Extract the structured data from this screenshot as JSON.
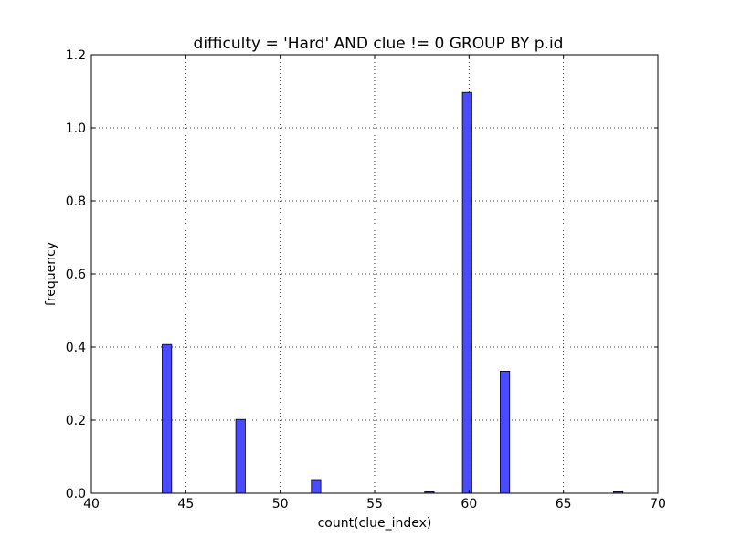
{
  "chart_data": {
    "type": "bar",
    "title": "difficulty = 'Hard' AND clue != 0 GROUP BY p.id",
    "xlabel": "count(clue_index)",
    "ylabel": "frequency",
    "xlim": [
      40,
      70
    ],
    "ylim": [
      0,
      1.2
    ],
    "xticks": [
      40,
      45,
      50,
      55,
      60,
      65,
      70
    ],
    "yticks": [
      0.0,
      0.2,
      0.4,
      0.6,
      0.8,
      1.0,
      1.2
    ],
    "xtick_labels": [
      "40",
      "45",
      "50",
      "55",
      "60",
      "65",
      "70"
    ],
    "ytick_labels": [
      "0.0",
      "0.2",
      "0.4",
      "0.6",
      "0.8",
      "1.0",
      "1.2"
    ],
    "grid": true,
    "bar_color": "#4040ff",
    "bar_width": 0.5,
    "bars": [
      {
        "x": 44.0,
        "value": 0.407
      },
      {
        "x": 47.9,
        "value": 0.202
      },
      {
        "x": 51.9,
        "value": 0.035
      },
      {
        "x": 57.9,
        "value": 0.004
      },
      {
        "x": 59.9,
        "value": 1.097
      },
      {
        "x": 61.9,
        "value": 0.334
      },
      {
        "x": 67.9,
        "value": 0.004
      }
    ]
  }
}
